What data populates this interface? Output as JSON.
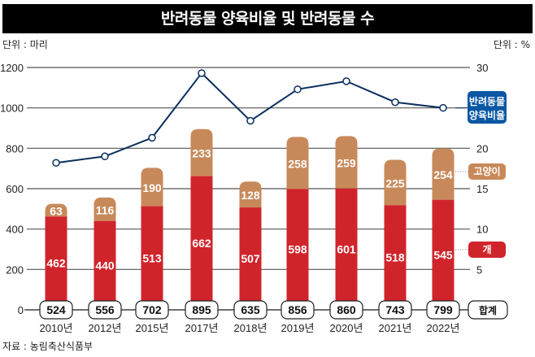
{
  "header": {
    "title": "반려동물 양육비율 및 반려동물 수",
    "left_unit": "단위 : 마리",
    "right_unit": "단위 : %",
    "source": "자료 : 농림축산식품부"
  },
  "colors": {
    "dog": "#d0242b",
    "cat": "#c8895a",
    "line": "#0a2f5e",
    "legend_line_bg": "#0b57a4",
    "grid": "#555555",
    "title_bg": "#000000"
  },
  "chart_data": {
    "type": "bar",
    "stacked": true,
    "title": "반려동물 양육비율 및 반려동물 수",
    "categories": [
      "2010년",
      "2012년",
      "2015년",
      "2017년",
      "2018년",
      "2019년",
      "2020년",
      "2021년",
      "2022년"
    ],
    "series": [
      {
        "name": "개",
        "type": "bar",
        "axis": "left",
        "values": [
          462,
          440,
          513,
          662,
          507,
          598,
          601,
          518,
          545
        ]
      },
      {
        "name": "고양이",
        "type": "bar",
        "axis": "left",
        "values": [
          63,
          116,
          190,
          233,
          128,
          258,
          259,
          225,
          254
        ]
      },
      {
        "name": "반려동물 양육비율",
        "type": "line",
        "axis": "right",
        "values": [
          18.2,
          19.0,
          21.3,
          29.3,
          23.4,
          27.3,
          28.3,
          25.7,
          25.0
        ]
      }
    ],
    "totals": {
      "name": "합계",
      "values": [
        524,
        556,
        702,
        895,
        635,
        856,
        860,
        743,
        799
      ]
    },
    "ylabel_left": "단위 : 마리",
    "ylabel_right": "단위 : %",
    "ylim_left": [
      0,
      1200
    ],
    "ylim_right": [
      0,
      30
    ],
    "yticks_left": [
      0,
      200,
      400,
      600,
      800,
      1000,
      1200
    ],
    "yticks_right": [
      0,
      5,
      10,
      15,
      20,
      25,
      30
    ],
    "grid": true,
    "legend": [
      {
        "label": "반려동물\n양육비율",
        "series": "반려동물 양육비율",
        "placement": "right"
      },
      {
        "label": "고양이",
        "series": "고양이",
        "placement": "right"
      },
      {
        "label": "개",
        "series": "개",
        "placement": "right"
      },
      {
        "label": "합계",
        "series": "totals",
        "placement": "bottom-right"
      }
    ],
    "source": "자료 : 농림축산식품부"
  }
}
